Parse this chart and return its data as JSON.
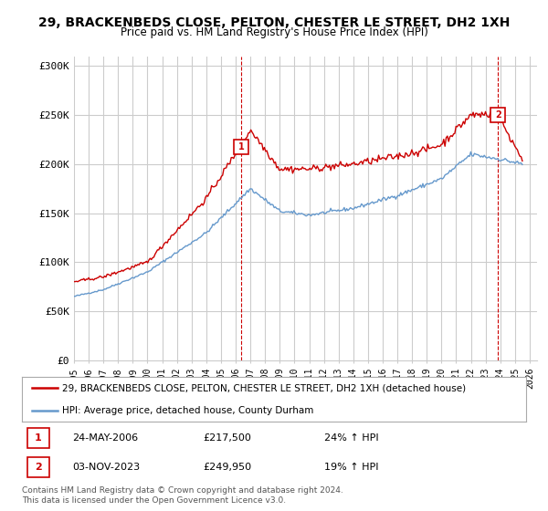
{
  "title": "29, BRACKENBEDS CLOSE, PELTON, CHESTER LE STREET, DH2 1XH",
  "subtitle": "Price paid vs. HM Land Registry's House Price Index (HPI)",
  "ylabel_ticks": [
    "£0",
    "£50K",
    "£100K",
    "£150K",
    "£200K",
    "£250K",
    "£300K"
  ],
  "ytick_values": [
    0,
    50000,
    100000,
    150000,
    200000,
    250000,
    300000
  ],
  "ylim": [
    0,
    310000
  ],
  "xlim_start": 1995.0,
  "xlim_end": 2026.5,
  "red_line_color": "#cc0000",
  "blue_line_color": "#6699cc",
  "marker1_x": 2006.39,
  "marker1_y": 217500,
  "marker2_x": 2023.84,
  "marker2_y": 249950,
  "marker1_label": "1",
  "marker2_label": "2",
  "legend_line1": "29, BRACKENBEDS CLOSE, PELTON, CHESTER LE STREET, DH2 1XH (detached house)",
  "legend_line2": "HPI: Average price, detached house, County Durham",
  "annotation1_date": "24-MAY-2006",
  "annotation1_price": "£217,500",
  "annotation1_hpi": "24% ↑ HPI",
  "annotation2_date": "03-NOV-2023",
  "annotation2_price": "£249,950",
  "annotation2_hpi": "19% ↑ HPI",
  "footer": "Contains HM Land Registry data © Crown copyright and database right 2024.\nThis data is licensed under the Open Government Licence v3.0.",
  "background_color": "#ffffff",
  "grid_color": "#cccccc"
}
